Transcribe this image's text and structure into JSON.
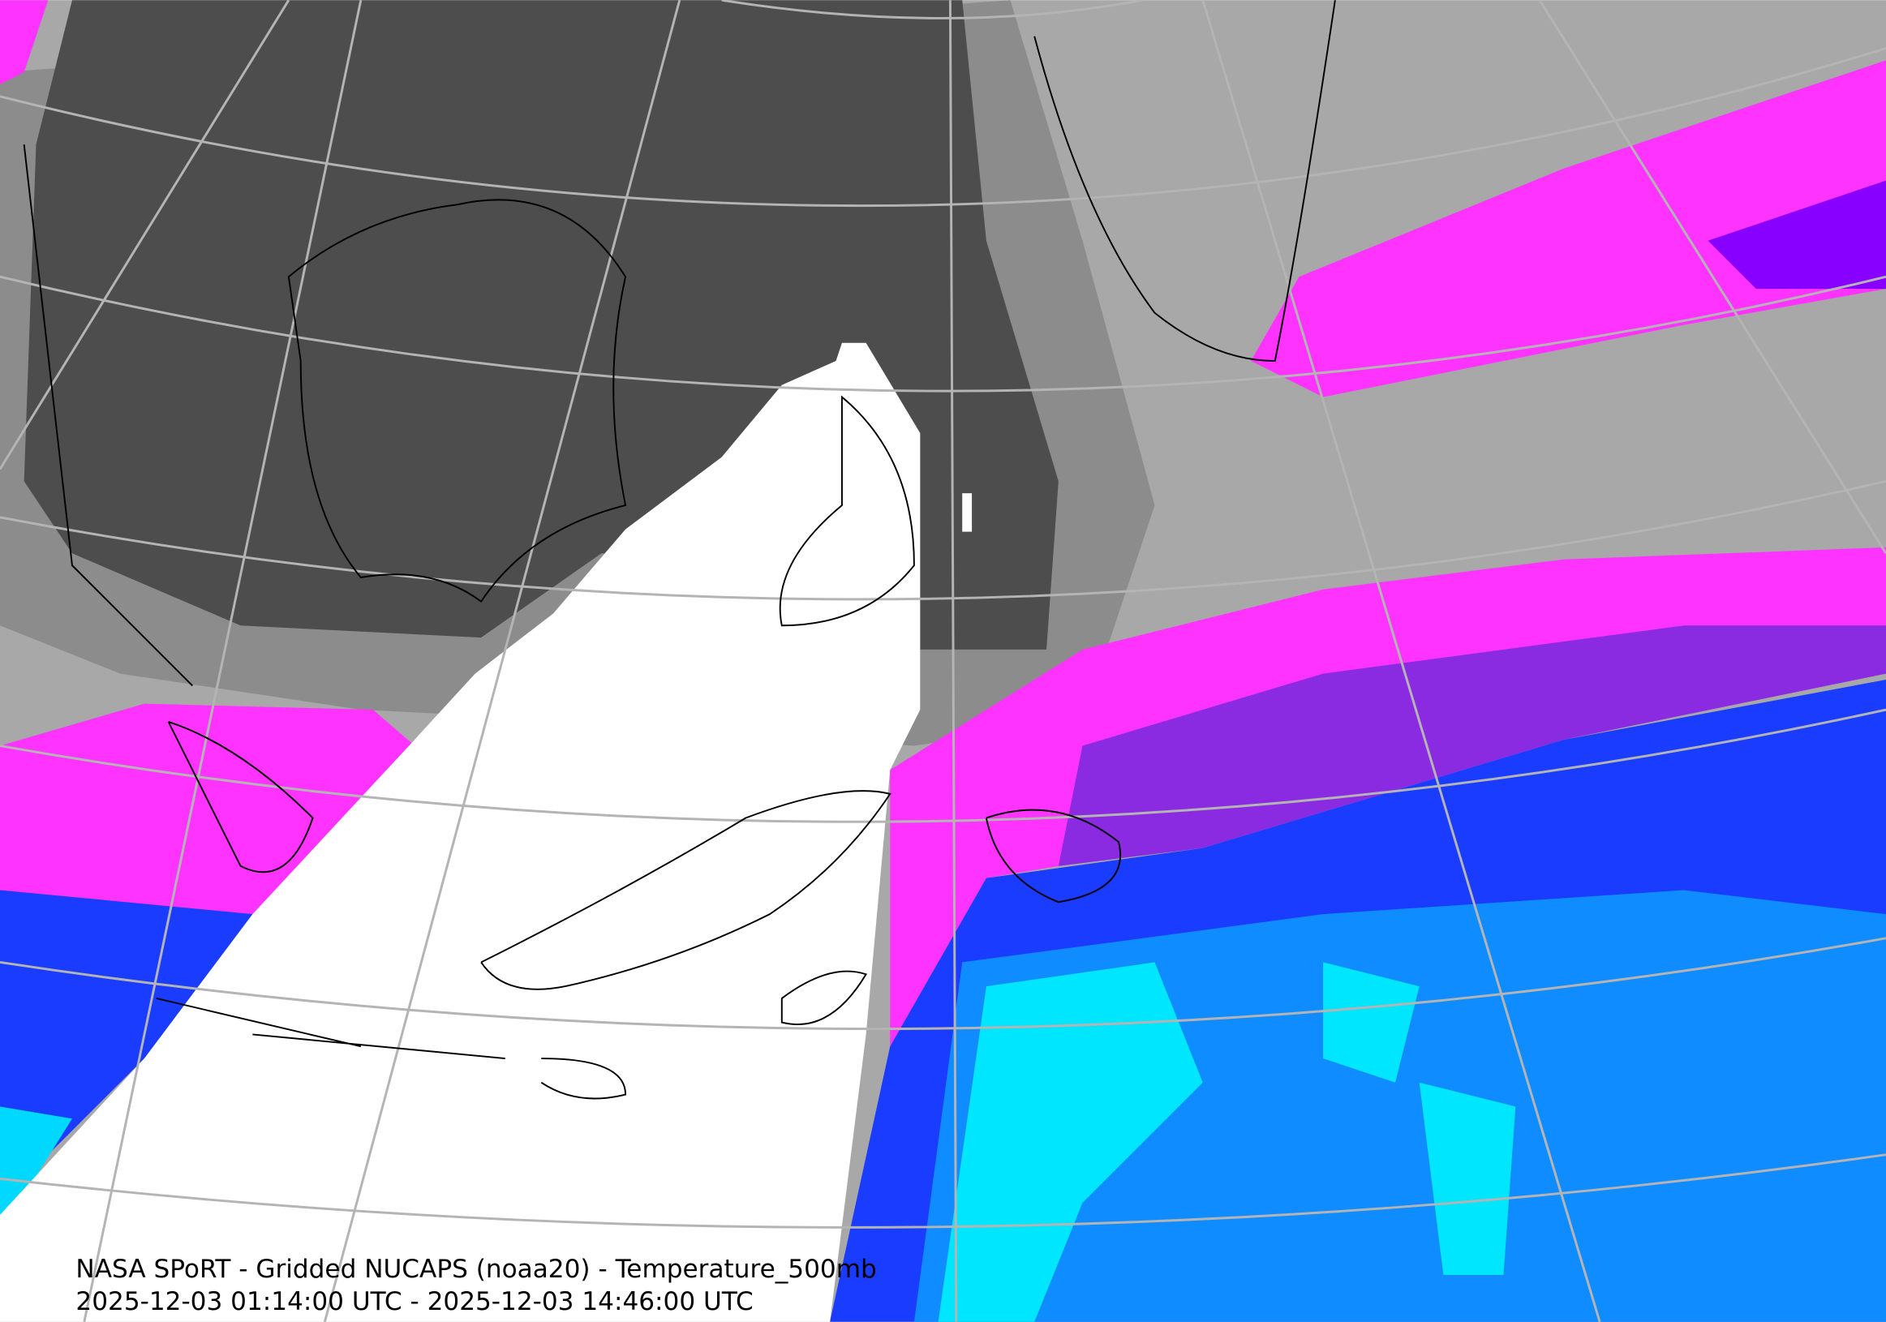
{
  "caption": {
    "title": "NASA SPoRT - Gridded NUCAPS (noaa20) - Temperature_500mb",
    "time_range": "2025-12-03 01:14:00 UTC - 2025-12-03 14:46:00 UTC"
  }
}
